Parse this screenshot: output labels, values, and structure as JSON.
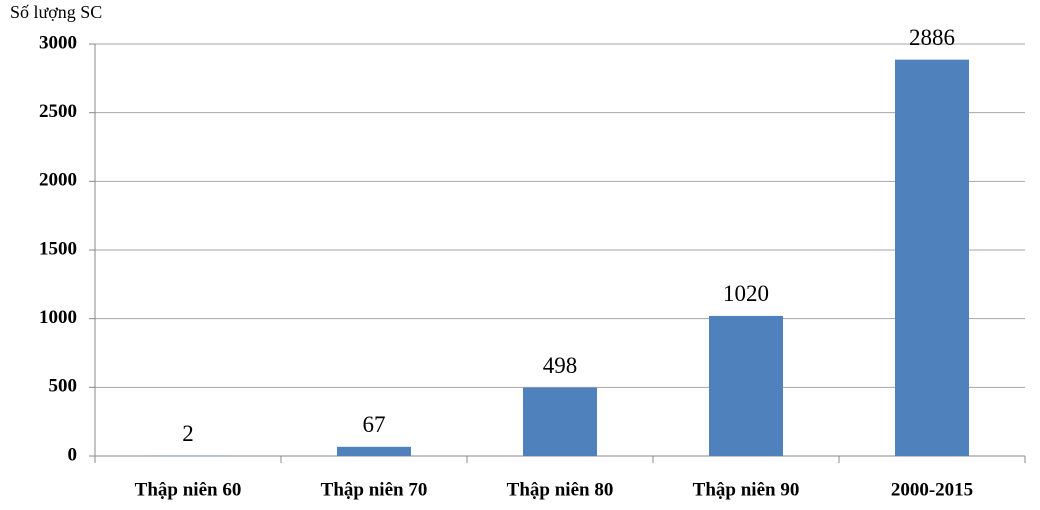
{
  "chart_data": {
    "type": "bar",
    "y_label": "Số lượng SC",
    "categories": [
      "Thập niên 60",
      "Thập niên 70",
      "Thập niên 80",
      "Thập niên 90",
      "2000-2015"
    ],
    "values": [
      2,
      67,
      498,
      1020,
      2886
    ],
    "color": "#4f81bd",
    "ylim": [
      0,
      3000
    ],
    "yticks": [
      0,
      500,
      1000,
      1500,
      2000,
      2500,
      3000
    ],
    "grid": true
  }
}
